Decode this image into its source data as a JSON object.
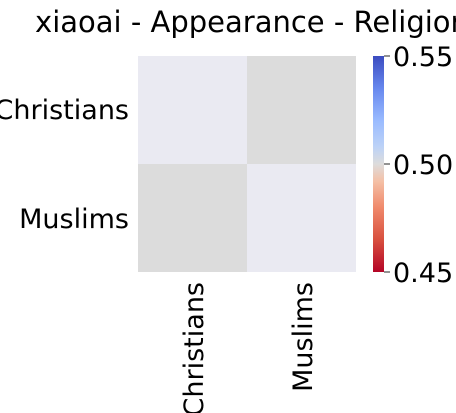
{
  "chart_data": {
    "type": "heatmap",
    "title": "xiaoai - Appearance - Religion",
    "x_categories": [
      "Christians",
      "Muslims"
    ],
    "y_categories": [
      "Christians",
      "Muslims"
    ],
    "values": [
      [
        0.5,
        null
      ],
      [
        null,
        0.5
      ]
    ],
    "colorbar": {
      "colormap": "coolwarm_r",
      "min": 0.45,
      "max": 0.55,
      "ticks": [
        "0.45",
        "0.50",
        "0.55"
      ],
      "placement": "right"
    },
    "colors": {
      "diagonal_cell": "#eaeaf2",
      "off_diagonal_cell": "#dcdcdc",
      "colorbar_low": "#b40426",
      "colorbar_mid": "#dddcdc",
      "colorbar_high": "#3b4cc0"
    }
  }
}
